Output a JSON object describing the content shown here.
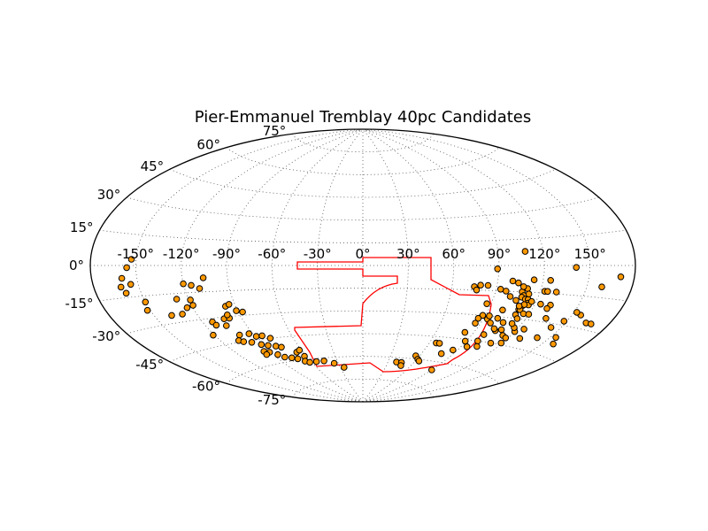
{
  "chart_data": {
    "type": "scatter",
    "projection": "aitoff",
    "title": "Pier-Emmanuel Tremblay 40pc Candidates",
    "xlabel": "",
    "ylabel": "",
    "grid": true,
    "longitude_ticks": [
      "-150°",
      "-120°",
      "-90°",
      "-60°",
      "-30°",
      "0°",
      "30°",
      "60°",
      "90°",
      "120°",
      "150°"
    ],
    "latitude_ticks": [
      "75°",
      "60°",
      "45°",
      "30°",
      "15°",
      "0°",
      "-15°",
      "-30°",
      "-45°",
      "-60°",
      "-75°"
    ],
    "colors": {
      "marker_fill": "#ff9900",
      "marker_edge": "#000000",
      "footprint": "#ff0000",
      "grid": "#555555"
    },
    "series": [
      {
        "name": "",
        "points": [
          [
            -153,
            3
          ],
          [
            -156,
            -1
          ],
          [
            -160,
            -6
          ],
          [
            -155,
            -9
          ],
          [
            -162,
            -10
          ],
          [
            -160,
            -13
          ],
          [
            -150,
            -18
          ],
          [
            -152,
            -22
          ],
          [
            -138,
            -26
          ],
          [
            -130,
            -26
          ],
          [
            -124,
            -23
          ],
          [
            -119,
            -22
          ],
          [
            -128,
            -18
          ],
          [
            -119,
            -19
          ],
          [
            -120,
            -10
          ],
          [
            -115,
            -11
          ],
          [
            -110,
            -13
          ],
          [
            -106,
            -7
          ],
          [
            -97,
            -24
          ],
          [
            -94,
            -23
          ],
          [
            -91,
            -27
          ],
          [
            -87,
            -28
          ],
          [
            -103,
            -31
          ],
          [
            -99,
            -31
          ],
          [
            -99,
            -29
          ],
          [
            -113,
            -32
          ],
          [
            -112,
            -34
          ],
          [
            -105,
            -35
          ],
          [
            -121,
            -39
          ],
          [
            -101,
            -41
          ],
          [
            -93,
            -41
          ],
          [
            -89,
            -43
          ],
          [
            -84,
            -43
          ],
          [
            -79,
            -45
          ],
          [
            -106,
            -44
          ],
          [
            -103,
            -45
          ],
          [
            -97,
            -46
          ],
          [
            -91,
            -48
          ],
          [
            -86,
            -49
          ],
          [
            -80,
            -50
          ],
          [
            -76,
            -51
          ],
          [
            -95,
            -52
          ],
          [
            -91,
            -53
          ],
          [
            -96,
            -54
          ],
          [
            -86,
            -55
          ],
          [
            -82,
            -57
          ],
          [
            -76,
            -58
          ],
          [
            -71,
            -59
          ],
          [
            -66,
            -55
          ],
          [
            -62,
            -54
          ],
          [
            -62,
            -58
          ],
          [
            -66,
            -61
          ],
          [
            -62,
            -62
          ],
          [
            -54,
            -62
          ],
          [
            -45,
            -62
          ],
          [
            -35,
            -64
          ],
          [
            -25,
            -67
          ],
          [
            40,
            -63
          ],
          [
            46,
            -63
          ],
          [
            48,
            -65
          ],
          [
            56,
            -58
          ],
          [
            61,
            -60
          ],
          [
            64,
            -61
          ],
          [
            66,
            -49
          ],
          [
            69,
            -49
          ],
          [
            79,
            -55
          ],
          [
            90,
            -65
          ],
          [
            83,
            -41
          ],
          [
            89,
            -46
          ],
          [
            86,
            -52
          ],
          [
            95,
            -49
          ],
          [
            99,
            -45
          ],
          [
            103,
            -48
          ],
          [
            99,
            -41
          ],
          [
            105,
            -38
          ],
          [
            111,
            -45
          ],
          [
            114,
            -40
          ],
          [
            109,
            -37
          ],
          [
            119,
            -44
          ],
          [
            118,
            -41
          ],
          [
            120,
            -37
          ],
          [
            125,
            -35
          ],
          [
            129,
            -40
          ],
          [
            141,
            -38
          ],
          [
            143,
            -32
          ],
          [
            154,
            -36
          ],
          [
            158,
            -39
          ],
          [
            164,
            -27
          ],
          [
            168,
            -27
          ],
          [
            156,
            -24
          ],
          [
            75,
            -13
          ],
          [
            77,
            -15
          ],
          [
            79,
            -12
          ],
          [
            84,
            -12
          ],
          [
            87,
            -23
          ],
          [
            88,
            -30
          ],
          [
            86,
            -32
          ],
          [
            86,
            -35
          ],
          [
            93,
            -32
          ],
          [
            93,
            -30
          ],
          [
            97,
            -34
          ],
          [
            100,
            -31
          ],
          [
            100,
            -26
          ],
          [
            103,
            -37
          ],
          [
            106,
            -33
          ],
          [
            111,
            -28
          ],
          [
            114,
            -30
          ],
          [
            117,
            -35
          ],
          [
            113,
            -33
          ],
          [
            111,
            -25
          ],
          [
            112,
            -23
          ],
          [
            108,
            -15
          ],
          [
            110,
            -17
          ],
          [
            106,
            -20
          ],
          [
            111,
            -13
          ],
          [
            109,
            -18
          ],
          [
            112,
            -19
          ],
          [
            114,
            -19
          ],
          [
            115,
            -21
          ],
          [
            116,
            -22
          ],
          [
            113,
            -22
          ],
          [
            112,
            -25
          ],
          [
            116,
            -27
          ],
          [
            120,
            -27
          ],
          [
            124,
            -21
          ],
          [
            131,
            -21
          ],
          [
            130,
            -23
          ],
          [
            134,
            -28
          ],
          [
            123,
            -14
          ],
          [
            125,
            -8
          ],
          [
            114,
            -8
          ],
          [
            108,
            -12
          ],
          [
            104,
            -10
          ],
          [
            100,
            -9
          ],
          [
            89,
            -2
          ],
          [
            93,
            -14
          ],
          [
            97,
            -15
          ],
          [
            101,
            -18
          ],
          [
            108,
            8
          ],
          [
            110,
            -23
          ],
          [
            113,
            -16
          ],
          [
            117,
            -20
          ],
          [
            125,
            -14
          ],
          [
            131,
            -14
          ],
          [
            141,
            -1
          ],
          [
            152,
            -23
          ],
          [
            148,
            -28
          ],
          [
            160,
            -10
          ],
          [
            171,
            -5
          ]
        ]
      }
    ]
  }
}
